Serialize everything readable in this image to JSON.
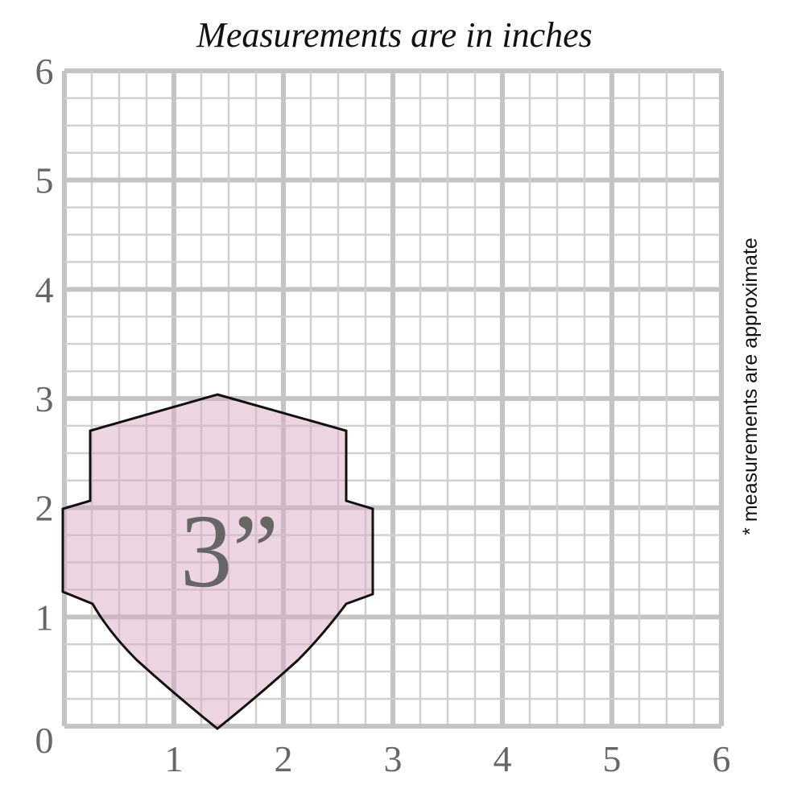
{
  "title": "Measurements are in inches",
  "y_labels": [
    "0",
    "1",
    "2",
    "3",
    "4",
    "5",
    "6"
  ],
  "x_labels": [
    "1",
    "2",
    "3",
    "4",
    "5",
    "6"
  ],
  "shape_label": "3”",
  "note": "* measurements are approximate"
}
